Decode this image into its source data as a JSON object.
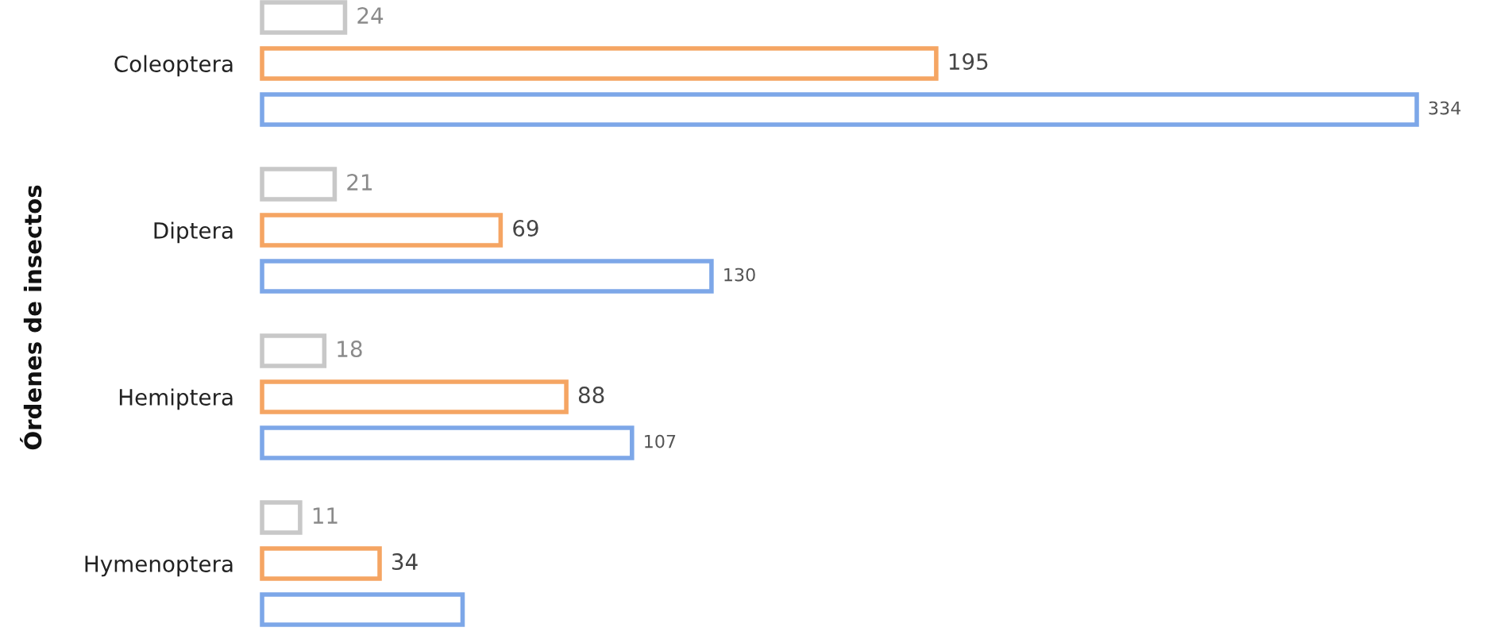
{
  "chart_data": {
    "type": "bar",
    "orientation": "horizontal",
    "ylabel": "Órdenes de insectos",
    "categories": [
      "Coleoptera",
      "Diptera",
      "Hemiptera",
      "Hymenoptera"
    ],
    "series": [
      {
        "color": "#c8c8c8",
        "values": [
          24,
          21,
          18,
          11
        ],
        "value_labels": [
          "24",
          "21",
          "18",
          "11"
        ]
      },
      {
        "color": "#f5a563",
        "values": [
          195,
          69,
          88,
          34
        ],
        "value_labels": [
          "195",
          "69",
          "88",
          "34"
        ]
      },
      {
        "color": "#7da7e8",
        "values": [
          334,
          130,
          107,
          58
        ],
        "value_labels": [
          "334",
          "130",
          "107",
          null
        ]
      }
    ]
  }
}
